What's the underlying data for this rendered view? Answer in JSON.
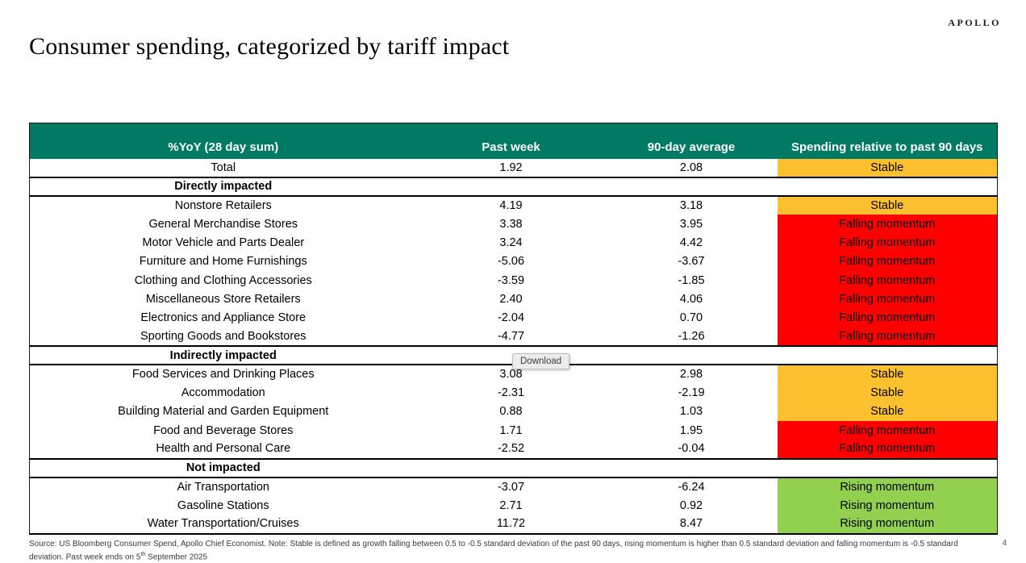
{
  "brand": {
    "logo": "APOLLO"
  },
  "page": {
    "title": "Consumer spending, categorized by tariff impact",
    "page_number": "4"
  },
  "tooltip": {
    "label": "Download"
  },
  "table": {
    "header_bg": "#007a62",
    "status_colors": {
      "Stable": "#fdc02f",
      "Falling momentum": "#fe0000",
      "Rising momentum": "#92d050"
    },
    "columns": [
      "%YoY (28 day sum)",
      "Past week",
      "90-day average",
      "Spending relative to past 90 days"
    ],
    "rows": [
      {
        "type": "data",
        "category": "Total",
        "past_week": "1.92",
        "avg_90d": "2.08",
        "status": "Stable"
      },
      {
        "type": "section",
        "category": "Directly impacted"
      },
      {
        "type": "data",
        "category": "Nonstore Retailers",
        "past_week": "4.19",
        "avg_90d": "3.18",
        "status": "Stable"
      },
      {
        "type": "data",
        "category": "General Merchandise Stores",
        "past_week": "3.38",
        "avg_90d": "3.95",
        "status": "Falling momentum"
      },
      {
        "type": "data",
        "category": "Motor Vehicle and Parts Dealer",
        "past_week": "3.24",
        "avg_90d": "4.42",
        "status": "Falling momentum"
      },
      {
        "type": "data",
        "category": "Furniture and Home Furnishings",
        "past_week": "-5.06",
        "avg_90d": "-3.67",
        "status": "Falling momentum"
      },
      {
        "type": "data",
        "category": "Clothing and Clothing Accessories",
        "past_week": "-3.59",
        "avg_90d": "-1.85",
        "status": "Falling momentum"
      },
      {
        "type": "data",
        "category": "Miscellaneous Store Retailers",
        "past_week": "2.40",
        "avg_90d": "4.06",
        "status": "Falling momentum"
      },
      {
        "type": "data",
        "category": "Electronics and Appliance Store",
        "past_week": "-2.04",
        "avg_90d": "0.70",
        "status": "Falling momentum"
      },
      {
        "type": "data",
        "category": "Sporting Goods and Bookstores",
        "past_week": "-4.77",
        "avg_90d": "-1.26",
        "status": "Falling momentum"
      },
      {
        "type": "section",
        "category": "Indirectly impacted"
      },
      {
        "type": "data",
        "category": "Food Services and Drinking Places",
        "past_week": "3.08",
        "avg_90d": "2.98",
        "status": "Stable"
      },
      {
        "type": "data",
        "category": "Accommodation",
        "past_week": "-2.31",
        "avg_90d": "-2.19",
        "status": "Stable"
      },
      {
        "type": "data",
        "category": "Building Material and Garden Equipment",
        "past_week": "0.88",
        "avg_90d": "1.03",
        "status": "Stable"
      },
      {
        "type": "data",
        "category": "Food and Beverage Stores",
        "past_week": "1.71",
        "avg_90d": "1.95",
        "status": "Falling momentum"
      },
      {
        "type": "data",
        "category": "Health and Personal Care",
        "past_week": "-2.52",
        "avg_90d": "-0.04",
        "status": "Falling momentum"
      },
      {
        "type": "section",
        "category": "Not impacted"
      },
      {
        "type": "data",
        "category": "Air Transportation",
        "past_week": "-3.07",
        "avg_90d": "-6.24",
        "status": "Rising momentum"
      },
      {
        "type": "data",
        "category": "Gasoline Stations",
        "past_week": "2.71",
        "avg_90d": "0.92",
        "status": "Rising momentum"
      },
      {
        "type": "data",
        "category": "Water Transportation/Cruises",
        "past_week": "11.72",
        "avg_90d": "8.47",
        "status": "Rising momentum"
      }
    ]
  },
  "footnote": {
    "line1": "Source: US Bloomberg Consumer Spend, Apollo Chief Economist. Note: Stable is defined as growth falling between 0.5 to -0.5 standard deviation of the past 90 days, rising momentum is higher than 0.5 standard deviation and falling momentum is -0.5 standard",
    "line2_prefix": "deviation. Past week ends on 5",
    "line2_sup": "th",
    "line2_suffix": " September 2025"
  }
}
